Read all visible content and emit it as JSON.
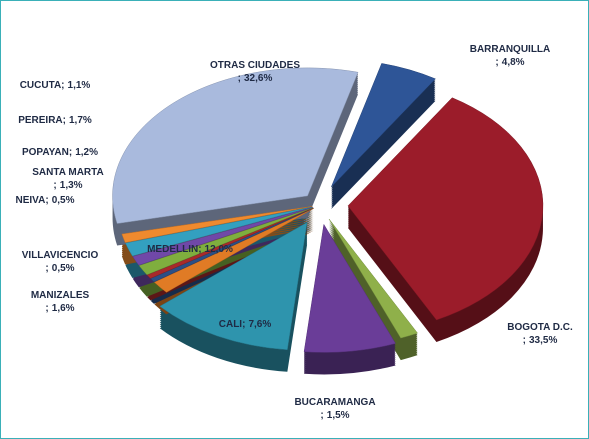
{
  "chart_data": {
    "type": "pie3d",
    "separator": ";",
    "categories": [
      "BARRANQUILLA",
      "BOGOTA D.C.",
      "BUCARAMANGA",
      "CALI",
      "MEDELLIN",
      "MANIZALES",
      "VILLAVICENCIO",
      "NEIVA",
      "SANTA MARTA",
      "POPAYAN",
      "PEREIRA",
      "CUCUTA",
      "OTRAS CIUDADES"
    ],
    "values": [
      4.8,
      33.5,
      1.5,
      7.6,
      12.0,
      1.6,
      0.5,
      0.5,
      1.3,
      1.2,
      1.7,
      1.1,
      32.6
    ],
    "value_labels": [
      "4,8%",
      "33,5%",
      "1,5%",
      "7,6%",
      "12,0%",
      "1,6%",
      "0,5%",
      "0,5%",
      "1,3%",
      "1,2%",
      "1,7%",
      "1,1%",
      "32,6%"
    ],
    "colors": [
      "#2e5597",
      "#9b1c2a",
      "#8fb04a",
      "#6a3d98",
      "#2e94ad",
      "#e07b25",
      "#2a4f86",
      "#a82a2a",
      "#7fae3e",
      "#7048a8",
      "#33a0c0",
      "#ef8a2e",
      "#a9badd"
    ]
  }
}
